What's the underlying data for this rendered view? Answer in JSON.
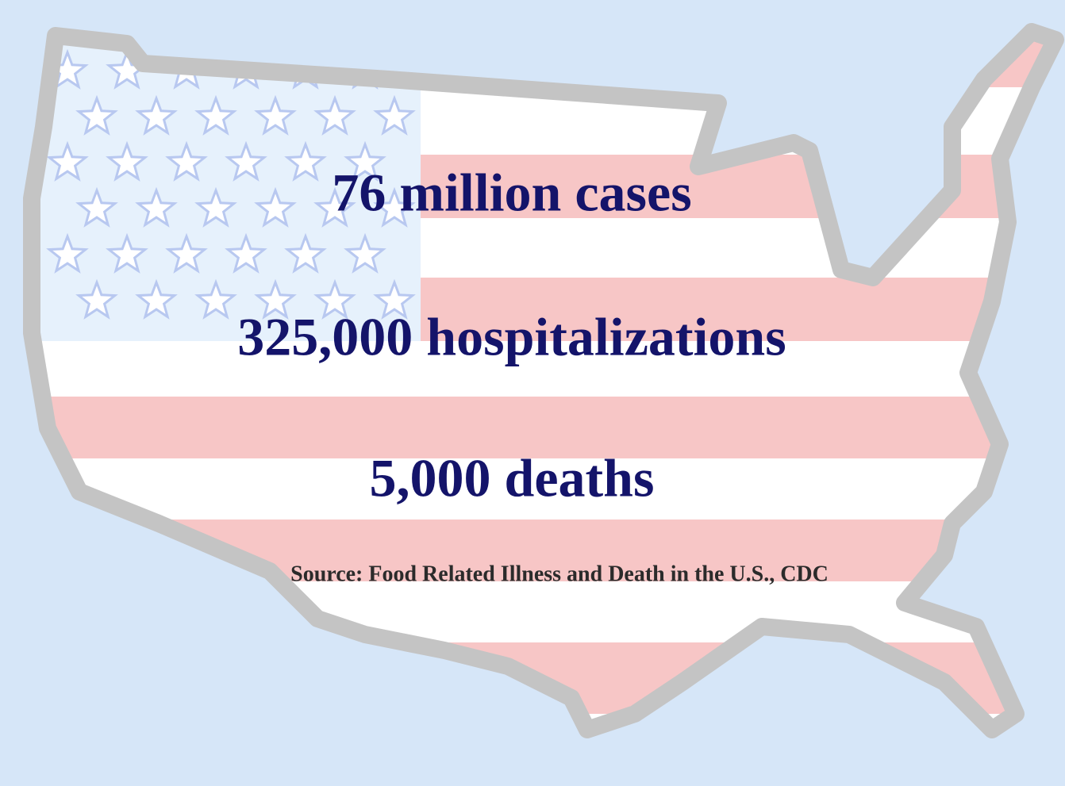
{
  "slide": {
    "lines": [
      "76 million cases",
      "325,000 hospitalizations",
      "5,000 deaths"
    ],
    "source": "Source: Food Related Illness and Death in the U.S., CDC"
  }
}
